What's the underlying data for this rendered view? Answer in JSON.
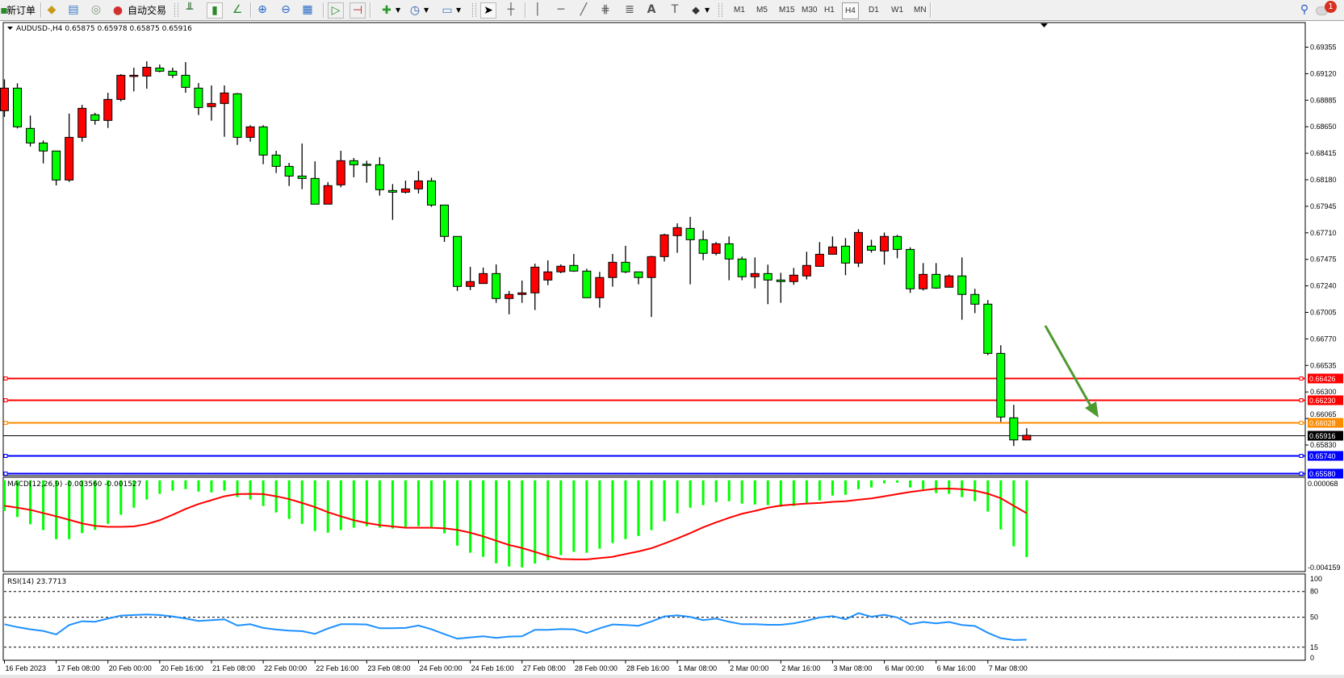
{
  "toolbar": {
    "new_order_label": "新订单",
    "autotrading_label": "自动交易",
    "timeframes": [
      "M1",
      "M5",
      "M15",
      "M30",
      "H1",
      "H4",
      "D1",
      "W1",
      "MN"
    ],
    "active_timeframe": "H4",
    "notification_count": "1"
  },
  "chart": {
    "header": "AUDUSD-,H4  0.65875 0.65978 0.65875 0.65916",
    "colors": {
      "bull": "#ff0000",
      "bear": "#00ff00",
      "outline": "#000000",
      "arrow": "#4f9a2f"
    },
    "price_axis_labels": [
      "0.69355",
      "0.69120",
      "0.68885",
      "0.68650",
      "0.68415",
      "0.68180",
      "0.67945",
      "0.67710",
      "0.67475",
      "0.67240",
      "0.67005",
      "0.66770",
      "0.66535",
      "0.66300",
      "0.66065",
      "0.65830"
    ],
    "hlines": [
      {
        "price": "0.66426",
        "color": "#ff0000",
        "text_color": "#ffffff"
      },
      {
        "price": "0.66230",
        "color": "#ff0000",
        "text_color": "#ffffff"
      },
      {
        "price": "0.66028",
        "color": "#ff8c00",
        "text_color": "#ffffff"
      },
      {
        "price": "0.65916",
        "color": "#000000",
        "text_color": "#ffffff",
        "bid": true
      },
      {
        "price": "0.65740",
        "color": "#0000ff",
        "text_color": "#ffffff"
      },
      {
        "price": "0.65580",
        "color": "#0000ff",
        "text_color": "#ffffff"
      }
    ],
    "candles": [
      [
        0.68792,
        0.6907,
        0.68737,
        0.68992
      ],
      [
        0.68992,
        0.69035,
        0.68635,
        0.68649
      ],
      [
        0.68635,
        0.68749,
        0.68475,
        0.68506
      ],
      [
        0.68506,
        0.68528,
        0.68325,
        0.68435
      ],
      [
        0.68435,
        0.68435,
        0.6813,
        0.68178
      ],
      [
        0.68178,
        0.68766,
        0.68161,
        0.68556
      ],
      [
        0.68556,
        0.68844,
        0.68518,
        0.68813
      ],
      [
        0.68756,
        0.68773,
        0.68668,
        0.68706
      ],
      [
        0.68706,
        0.68951,
        0.68639,
        0.68892
      ],
      [
        0.68892,
        0.69116,
        0.68875,
        0.69106
      ],
      [
        0.69101,
        0.69173,
        0.68963,
        0.69106
      ],
      [
        0.69099,
        0.6923,
        0.68987,
        0.69177
      ],
      [
        0.6917,
        0.69201,
        0.69132,
        0.69142
      ],
      [
        0.69142,
        0.69173,
        0.69082,
        0.69106
      ],
      [
        0.69106,
        0.69223,
        0.68951,
        0.68999
      ],
      [
        0.68992,
        0.69037,
        0.68754,
        0.6882
      ],
      [
        0.68828,
        0.69016,
        0.68704,
        0.68856
      ],
      [
        0.68856,
        0.69016,
        0.68561,
        0.68949
      ],
      [
        0.68942,
        0.68949,
        0.68489,
        0.68556
      ],
      [
        0.68556,
        0.68663,
        0.68518,
        0.68649
      ],
      [
        0.68649,
        0.68663,
        0.68318,
        0.68399
      ],
      [
        0.68399,
        0.68437,
        0.6824,
        0.68299
      ],
      [
        0.68299,
        0.6833,
        0.68125,
        0.68213
      ],
      [
        0.68213,
        0.68501,
        0.68097,
        0.68192
      ],
      [
        0.68192,
        0.68344,
        0.67964,
        0.67964
      ],
      [
        0.67964,
        0.68159,
        0.67964,
        0.68128
      ],
      [
        0.68135,
        0.68437,
        0.68114,
        0.68349
      ],
      [
        0.68349,
        0.68373,
        0.68202,
        0.68313
      ],
      [
        0.68318,
        0.68349,
        0.68154,
        0.68316
      ],
      [
        0.68313,
        0.6838,
        0.6804,
        0.68092
      ],
      [
        0.68085,
        0.68142,
        0.67825,
        0.6807
      ],
      [
        0.6807,
        0.68173,
        0.68059,
        0.68099
      ],
      [
        0.68099,
        0.68258,
        0.68059,
        0.6817
      ],
      [
        0.6817,
        0.68199,
        0.6794,
        0.67956
      ],
      [
        0.67956,
        0.67956,
        0.6763,
        0.67678
      ],
      [
        0.67678,
        0.67678,
        0.67195,
        0.67235
      ],
      [
        0.67235,
        0.67409,
        0.67202,
        0.67278
      ],
      [
        0.67261,
        0.67402,
        0.67261,
        0.67349
      ],
      [
        0.67349,
        0.6743,
        0.6709,
        0.67128
      ],
      [
        0.67128,
        0.67195,
        0.66988,
        0.67164
      ],
      [
        0.67164,
        0.67287,
        0.6709,
        0.67178
      ],
      [
        0.67178,
        0.67437,
        0.67026,
        0.67406
      ],
      [
        0.67292,
        0.67466,
        0.67247,
        0.67364
      ],
      [
        0.67364,
        0.6743,
        0.67352,
        0.67414
      ],
      [
        0.67421,
        0.67523,
        0.67364,
        0.67371
      ],
      [
        0.67371,
        0.67392,
        0.67135,
        0.67135
      ],
      [
        0.67135,
        0.67364,
        0.67047,
        0.67314
      ],
      [
        0.67314,
        0.67523,
        0.67233,
        0.67449
      ],
      [
        0.67449,
        0.67595,
        0.67352,
        0.67364
      ],
      [
        0.67364,
        0.67364,
        0.67254,
        0.67314
      ],
      [
        0.67314,
        0.67506,
        0.66964,
        0.67499
      ],
      [
        0.67499,
        0.67702,
        0.67456,
        0.67692
      ],
      [
        0.67685,
        0.67794,
        0.67533,
        0.67756
      ],
      [
        0.67749,
        0.67851,
        0.67254,
        0.67649
      ],
      [
        0.67649,
        0.6773,
        0.67468,
        0.67528
      ],
      [
        0.67528,
        0.67628,
        0.67511,
        0.67613
      ],
      [
        0.67613,
        0.67678,
        0.6729,
        0.67478
      ],
      [
        0.67478,
        0.67499,
        0.6729,
        0.67321
      ],
      [
        0.67321,
        0.67492,
        0.67218,
        0.67349
      ],
      [
        0.67349,
        0.67428,
        0.67078,
        0.67292
      ],
      [
        0.67292,
        0.67356,
        0.6709,
        0.67278
      ],
      [
        0.67278,
        0.67399,
        0.67249,
        0.67335
      ],
      [
        0.67328,
        0.67542,
        0.67297,
        0.67421
      ],
      [
        0.67413,
        0.67628,
        0.67413,
        0.6752
      ],
      [
        0.6752,
        0.67678,
        0.6752,
        0.67585
      ],
      [
        0.67592,
        0.67663,
        0.67335,
        0.67442
      ],
      [
        0.67442,
        0.67742,
        0.67406,
        0.67713
      ],
      [
        0.67592,
        0.67649,
        0.67535,
        0.67556
      ],
      [
        0.67549,
        0.67713,
        0.67428,
        0.67678
      ],
      [
        0.67678,
        0.67692,
        0.67485,
        0.67563
      ],
      [
        0.67563,
        0.67582,
        0.67178,
        0.67214
      ],
      [
        0.67214,
        0.67442,
        0.67199,
        0.67342
      ],
      [
        0.67342,
        0.67442,
        0.67214,
        0.67221
      ],
      [
        0.67228,
        0.67342,
        0.67228,
        0.67328
      ],
      [
        0.67328,
        0.67492,
        0.6694,
        0.67164
      ],
      [
        0.67164,
        0.67214,
        0.66999,
        0.67078
      ],
      [
        0.67078,
        0.67114,
        0.66626,
        0.66642
      ],
      [
        0.66642,
        0.66714,
        0.66035,
        0.66078
      ],
      [
        0.66071,
        0.66186,
        0.65821,
        0.65875
      ],
      [
        0.65875,
        0.65978,
        0.65875,
        0.65916
      ]
    ],
    "time_labels": [
      "16 Feb 2023",
      "17 Feb 08:00",
      "20 Feb 00:00",
      "20 Feb 16:00",
      "21 Feb 08:00",
      "22 Feb 00:00",
      "22 Feb 16:00",
      "23 Feb 08:00",
      "24 Feb 00:00",
      "24 Feb 16:00",
      "27 Feb 08:00",
      "28 Feb 00:00",
      "28 Feb 16:00",
      "1 Mar 08:00",
      "2 Mar 00:00",
      "2 Mar 16:00",
      "3 Mar 08:00",
      "6 Mar 00:00",
      "6 Mar 16:00",
      "7 Mar 08:00"
    ]
  },
  "macd": {
    "label": "MACD(12,26,9) -0.003560 -0.001527",
    "axis_top": "0.000068",
    "axis_bottom": "-0.004159",
    "hist_color": "#00ff00",
    "signal_color": "#ff0000",
    "hist": [
      -0.00142,
      -0.0017,
      -0.00204,
      -0.00231,
      -0.00273,
      -0.00273,
      -0.00245,
      -0.0023,
      -0.00202,
      -0.0016,
      -0.00127,
      -0.00089,
      -0.00063,
      -0.00048,
      -0.00041,
      -0.00052,
      -0.00056,
      -0.00048,
      -0.00078,
      -0.00089,
      -0.00119,
      -0.00149,
      -0.00179,
      -0.00202,
      -0.00235,
      -0.00243,
      -0.00231,
      -0.0022,
      -0.00213,
      -0.0022,
      -0.00224,
      -0.00216,
      -0.00213,
      -0.00216,
      -0.00246,
      -0.00303,
      -0.00336,
      -0.00355,
      -0.00385,
      -0.004,
      -0.00404,
      -0.00386,
      -0.0037,
      -0.00347,
      -0.00332,
      -0.00336,
      -0.00317,
      -0.00291,
      -0.00273,
      -0.00258,
      -0.00231,
      -0.0019,
      -0.00153,
      -0.00127,
      -0.00115,
      -0.00101,
      -0.00097,
      -0.00108,
      -0.00112,
      -0.00115,
      -0.00123,
      -0.00119,
      -0.00104,
      -0.00093,
      -0.00071,
      -0.00067,
      -0.00041,
      -0.00033,
      -0.00014,
      -0.00011,
      -0.00033,
      -0.00041,
      -0.00059,
      -0.00063,
      -0.00078,
      -0.00097,
      -0.00145,
      -0.00228,
      -0.00306,
      -0.00356
    ],
    "signal": [
      -0.00118,
      -0.00127,
      -0.00137,
      -0.00152,
      -0.00167,
      -0.00183,
      -0.002,
      -0.00211,
      -0.00216,
      -0.00216,
      -0.00214,
      -0.00203,
      -0.00185,
      -0.0016,
      -0.00133,
      -0.0011,
      -0.00092,
      -0.00074,
      -0.00064,
      -0.00063,
      -0.00064,
      -0.00074,
      -0.00087,
      -0.00105,
      -0.00124,
      -0.00148,
      -0.00167,
      -0.00185,
      -0.00198,
      -0.00208,
      -0.00214,
      -0.0022,
      -0.0022,
      -0.0022,
      -0.00223,
      -0.0023,
      -0.00243,
      -0.0026,
      -0.0028,
      -0.003,
      -0.00314,
      -0.00332,
      -0.00351,
      -0.00365,
      -0.00367,
      -0.00367,
      -0.00361,
      -0.00355,
      -0.00342,
      -0.0033,
      -0.00315,
      -0.00293,
      -0.0027,
      -0.00245,
      -0.00218,
      -0.00195,
      -0.00174,
      -0.00155,
      -0.00142,
      -0.00127,
      -0.00117,
      -0.00112,
      -0.00108,
      -0.00105,
      -0.001,
      -0.00097,
      -0.0009,
      -0.00084,
      -0.00074,
      -0.00064,
      -0.00054,
      -0.00046,
      -0.00039,
      -0.00038,
      -0.00041,
      -0.00048,
      -0.00062,
      -0.00083,
      -0.00118,
      -0.001527
    ]
  },
  "rsi": {
    "label": "RSI(14) 23.7713",
    "color": "#1e90ff",
    "levels": [
      80,
      50,
      15
    ],
    "axis_labels": [
      "100",
      "80",
      "50",
      "15",
      "0"
    ],
    "values": [
      41.8,
      38.4,
      35.9,
      34.0,
      29.9,
      40.9,
      45.3,
      44.7,
      48.4,
      51.9,
      52.5,
      53.1,
      52.5,
      50.9,
      48.4,
      45.6,
      46.6,
      47.5,
      40.3,
      41.8,
      37.5,
      35.6,
      34.3,
      33.7,
      30.6,
      36.8,
      41.8,
      41.8,
      41.5,
      37.1,
      37.1,
      37.5,
      40.3,
      35.9,
      30.3,
      24.9,
      26.5,
      27.7,
      25.9,
      27.4,
      27.7,
      35.3,
      35.3,
      36.2,
      35.9,
      31.5,
      37.1,
      41.5,
      40.9,
      40.0,
      45.0,
      50.9,
      52.2,
      50.3,
      46.6,
      48.4,
      44.7,
      41.8,
      41.8,
      41.2,
      41.2,
      42.8,
      45.9,
      49.7,
      51.3,
      47.5,
      54.7,
      50.6,
      52.8,
      49.7,
      41.8,
      44.4,
      42.8,
      44.4,
      40.9,
      39.7,
      31.8,
      25.5,
      23.4,
      23.7713
    ]
  }
}
